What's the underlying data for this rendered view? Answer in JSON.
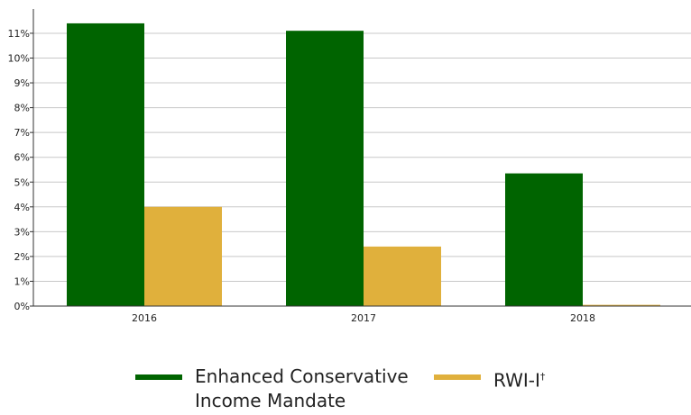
{
  "chart_data": {
    "type": "bar",
    "categories": [
      "2016",
      "2017",
      "2018"
    ],
    "series": [
      {
        "name": "Enhanced Conservative Income Mandate",
        "values": [
          11.4,
          11.1,
          5.35
        ],
        "color": "#006400"
      },
      {
        "name": "RWI-I†",
        "values": [
          4.0,
          2.4,
          0.05
        ],
        "color": "#e0b03c"
      }
    ],
    "ylim": [
      0,
      11.6
    ],
    "yticks": [
      0,
      1,
      2,
      3,
      4,
      5,
      6,
      7,
      8,
      9,
      10,
      11
    ],
    "ytick_labels": [
      "0%",
      "1%",
      "2%",
      "3%",
      "4%",
      "5%",
      "6%",
      "7%",
      "8%",
      "9%",
      "10%",
      "11%"
    ],
    "grid": true,
    "legend_position": "bottom",
    "title": "",
    "xlabel": "",
    "ylabel": ""
  },
  "legend": {
    "series1_line1": "Enhanced Conservative",
    "series1_line2": "Income Mandate",
    "series2_label": "RWI-I",
    "series2_mark": "†"
  }
}
